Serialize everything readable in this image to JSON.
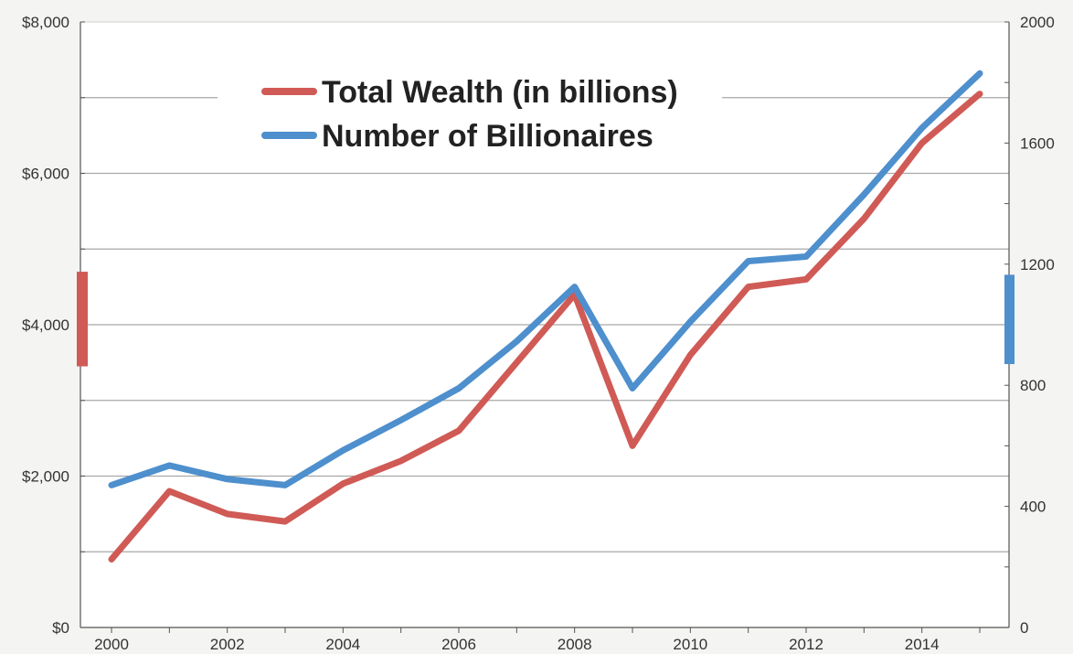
{
  "colors": {
    "wealth": "#d05a55",
    "billionaires": "#4e8fcd",
    "grid": "#a8a8a8",
    "background": "#f4f4f2",
    "plot": "#ffffff"
  },
  "chart_data": {
    "type": "line",
    "x": [
      2000,
      2001,
      2002,
      2003,
      2004,
      2005,
      2006,
      2007,
      2008,
      2009,
      2010,
      2011,
      2012,
      2013,
      2014,
      2015
    ],
    "x_tick_labels": [
      "2000",
      "2002",
      "2004",
      "2006",
      "2008",
      "2010",
      "2012",
      "2014"
    ],
    "x_tick_values": [
      2000,
      2002,
      2004,
      2006,
      2008,
      2010,
      2012,
      2014
    ],
    "xlim": [
      2000,
      2015
    ],
    "y_left": {
      "ylim": [
        0,
        8000
      ],
      "tick_values": [
        0,
        2000,
        4000,
        6000,
        8000
      ],
      "tick_labels": [
        "$0",
        "$2,000",
        "$4,000",
        "$6,000",
        "$8,000"
      ]
    },
    "y_right": {
      "ylim": [
        0,
        2000
      ],
      "tick_values": [
        0,
        400,
        800,
        1200,
        1600,
        2000
      ],
      "tick_labels": [
        "0",
        "400",
        "800",
        "1200",
        "1600",
        "2000"
      ]
    },
    "grid": true,
    "legend_position": "top-center",
    "series": [
      {
        "name": "Total Wealth (in billions)",
        "axis": "left",
        "color_key": "wealth",
        "values": [
          900,
          1800,
          1500,
          1400,
          1900,
          2200,
          2600,
          3500,
          4400,
          2400,
          3600,
          4500,
          4600,
          5400,
          6400,
          7050
        ]
      },
      {
        "name": "Number of Billionaires",
        "axis": "right",
        "color_key": "billionaires",
        "values": [
          470,
          535,
          490,
          470,
          585,
          685,
          790,
          945,
          1125,
          790,
          1010,
          1210,
          1225,
          1430,
          1650,
          1830
        ]
      }
    ]
  }
}
